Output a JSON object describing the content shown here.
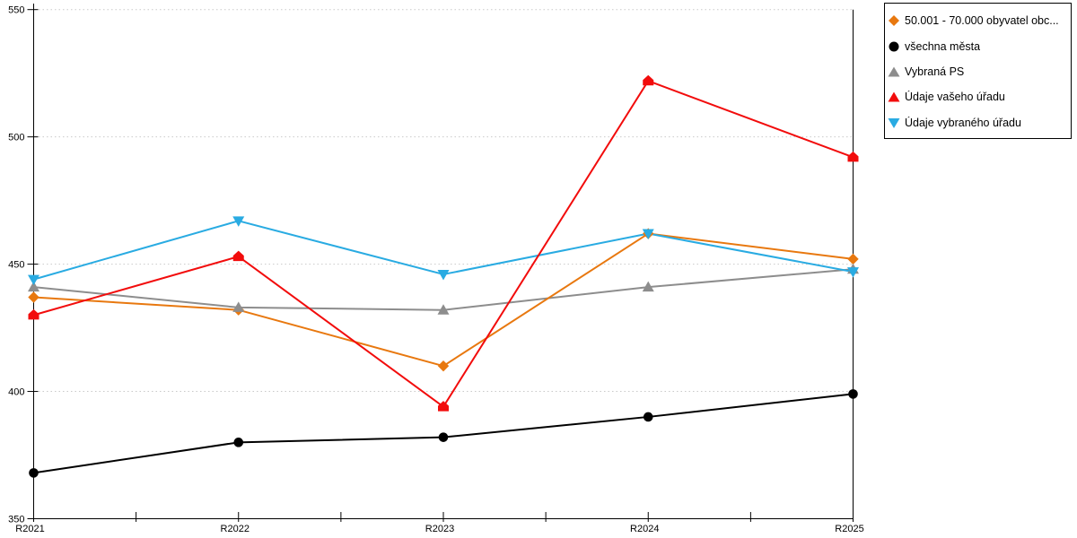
{
  "chart": {
    "background": "#ffffff",
    "grid_color": "#c9c9c9",
    "axis_color": "#000000"
  },
  "chart_data": {
    "type": "line",
    "title": "",
    "xlabel": "",
    "ylabel": "",
    "categories": [
      "R2021",
      "R2022",
      "R2023",
      "R2024",
      "R2025"
    ],
    "ylim": [
      350,
      550
    ],
    "yticks": [
      350,
      400,
      450,
      500,
      550
    ],
    "grid": "horizontal-dotted",
    "legend_position": "top-right",
    "series": [
      {
        "name": "50.001 - 70.000 obyvatel obc...",
        "marker": "diamond",
        "color": "#e8780f",
        "values": [
          437,
          432,
          410,
          462,
          452
        ]
      },
      {
        "name": "všechna města",
        "marker": "circle",
        "color": "#000000",
        "values": [
          368,
          380,
          382,
          390,
          399
        ]
      },
      {
        "name": "Vybraná PS",
        "marker": "triangle-up",
        "color": "#8d8d8d",
        "values": [
          441,
          433,
          432,
          441,
          448
        ]
      },
      {
        "name": "Údaje vašeho úřadu",
        "marker": "triangle-up",
        "color": "#f20c0c",
        "values": [
          430,
          453,
          394,
          522,
          492
        ]
      },
      {
        "name": "Údaje vybraného úřadu",
        "marker": "triangle-down",
        "color": "#29abe2",
        "values": [
          444,
          467,
          446,
          462,
          447
        ]
      }
    ]
  }
}
